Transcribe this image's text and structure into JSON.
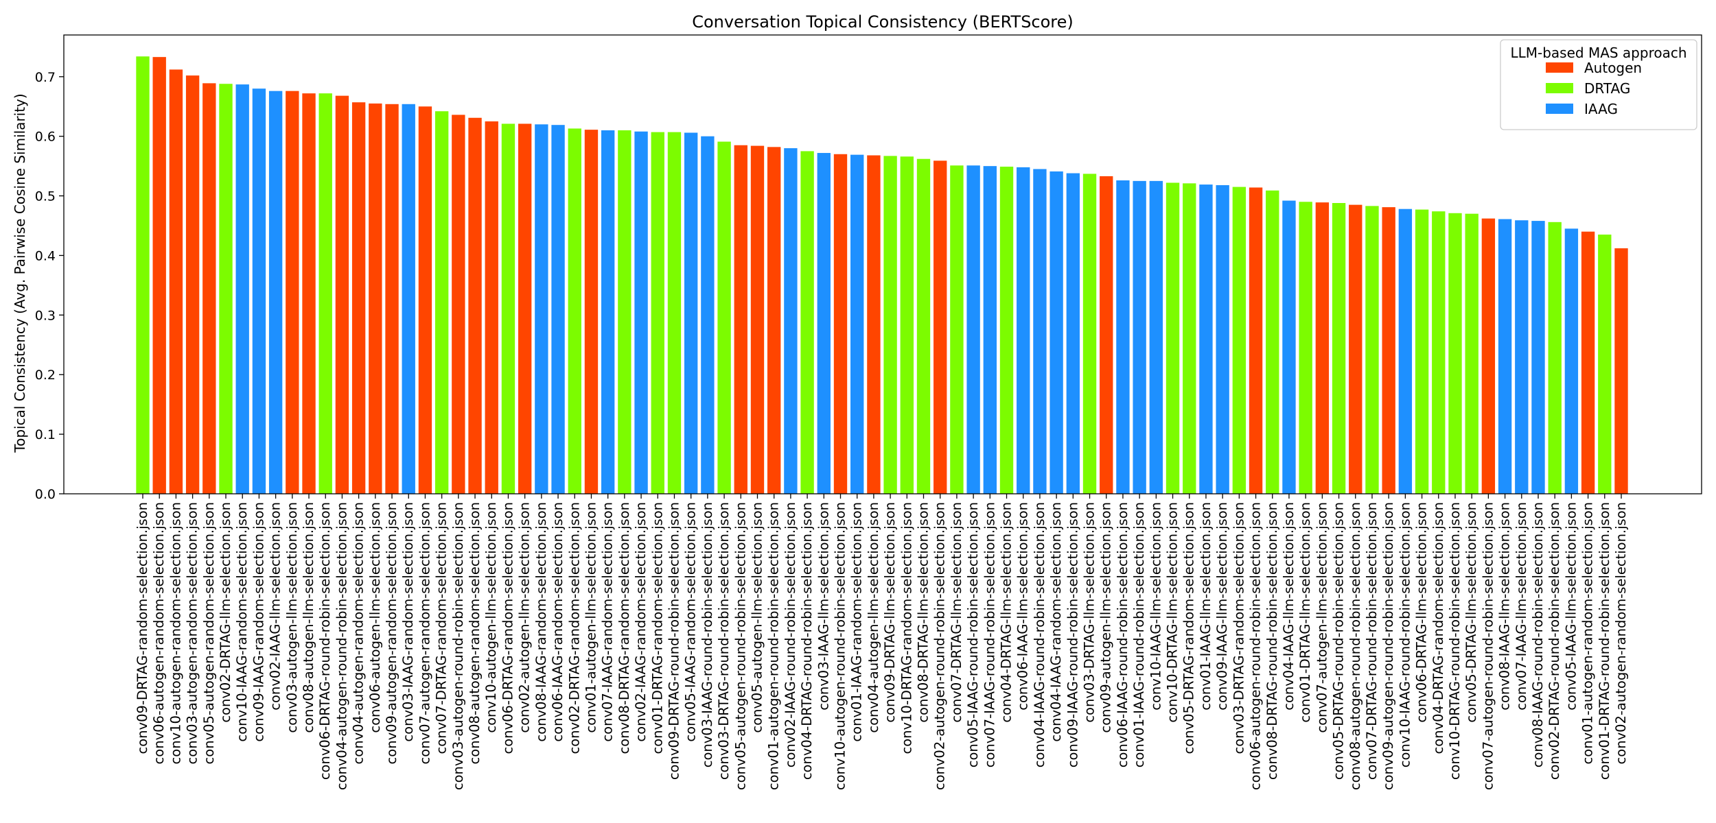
{
  "chart_data": {
    "type": "bar",
    "title": "Conversation Topical Consistency (BERTScore)",
    "xlabel": "",
    "ylabel": "Topical Consistency (Avg. Pairwise Cosine Similarity)",
    "ylim": [
      0,
      0.77
    ],
    "yticks": [
      0.0,
      0.1,
      0.2,
      0.3,
      0.4,
      0.5,
      0.6,
      0.7
    ],
    "ytick_labels": [
      "0.0",
      "0.1",
      "0.2",
      "0.3",
      "0.4",
      "0.5",
      "0.6",
      "0.7"
    ],
    "grid": false,
    "legend": {
      "title": "LLM-based MAS approach",
      "placement": "top-right",
      "entries": [
        {
          "name": "Autogen",
          "color": "#FF4500"
        },
        {
          "name": "DRTAG",
          "color": "#7CFC00"
        },
        {
          "name": "IAAG",
          "color": "#1E90FF"
        }
      ]
    },
    "categories": [
      "conv09-DRTAG-random-selection.json",
      "conv06-autogen-random-selection.json",
      "conv10-autogen-random-selection.json",
      "conv03-autogen-random-selection.json",
      "conv05-autogen-random-selection.json",
      "conv02-DRTAG-llm-selection.json",
      "conv10-IAAG-random-selection.json",
      "conv09-IAAG-random-selection.json",
      "conv02-IAAG-llm-selection.json",
      "conv03-autogen-llm-selection.json",
      "conv08-autogen-llm-selection.json",
      "conv06-DRTAG-round-robin-selection.json",
      "conv04-autogen-round-robin-selection.json",
      "conv04-autogen-random-selection.json",
      "conv06-autogen-llm-selection.json",
      "conv09-autogen-random-selection.json",
      "conv03-IAAG-random-selection.json",
      "conv07-autogen-random-selection.json",
      "conv07-DRTAG-random-selection.json",
      "conv03-autogen-round-robin-selection.json",
      "conv08-autogen-random-selection.json",
      "conv10-autogen-llm-selection.json",
      "conv06-DRTAG-random-selection.json",
      "conv02-autogen-llm-selection.json",
      "conv08-IAAG-random-selection.json",
      "conv06-IAAG-random-selection.json",
      "conv02-DRTAG-random-selection.json",
      "conv01-autogen-llm-selection.json",
      "conv07-IAAG-random-selection.json",
      "conv08-DRTAG-random-selection.json",
      "conv02-IAAG-random-selection.json",
      "conv01-DRTAG-random-selection.json",
      "conv09-DRTAG-round-robin-selection.json",
      "conv05-IAAG-random-selection.json",
      "conv03-IAAG-round-robin-selection.json",
      "conv03-DRTAG-round-robin-selection.json",
      "conv05-autogen-round-robin-selection.json",
      "conv05-autogen-llm-selection.json",
      "conv01-autogen-round-robin-selection.json",
      "conv02-IAAG-round-robin-selection.json",
      "conv04-DRTAG-round-robin-selection.json",
      "conv03-IAAG-llm-selection.json",
      "conv10-autogen-round-robin-selection.json",
      "conv01-IAAG-random-selection.json",
      "conv04-autogen-llm-selection.json",
      "conv09-DRTAG-llm-selection.json",
      "conv10-DRTAG-random-selection.json",
      "conv08-DRTAG-llm-selection.json",
      "conv02-autogen-round-robin-selection.json",
      "conv07-DRTAG-llm-selection.json",
      "conv05-IAAG-round-robin-selection.json",
      "conv07-IAAG-round-robin-selection.json",
      "conv04-DRTAG-llm-selection.json",
      "conv06-IAAG-llm-selection.json",
      "conv04-IAAG-round-robin-selection.json",
      "conv04-IAAG-random-selection.json",
      "conv09-IAAG-round-robin-selection.json",
      "conv03-DRTAG-llm-selection.json",
      "conv09-autogen-llm-selection.json",
      "conv06-IAAG-round-robin-selection.json",
      "conv01-IAAG-round-robin-selection.json",
      "conv10-IAAG-llm-selection.json",
      "conv10-DRTAG-llm-selection.json",
      "conv05-DRTAG-random-selection.json",
      "conv01-IAAG-llm-selection.json",
      "conv09-IAAG-llm-selection.json",
      "conv03-DRTAG-random-selection.json",
      "conv06-autogen-round-robin-selection.json",
      "conv08-DRTAG-round-robin-selection.json",
      "conv04-IAAG-llm-selection.json",
      "conv01-DRTAG-llm-selection.json",
      "conv07-autogen-llm-selection.json",
      "conv05-DRTAG-round-robin-selection.json",
      "conv08-autogen-round-robin-selection.json",
      "conv07-DRTAG-round-robin-selection.json",
      "conv09-autogen-round-robin-selection.json",
      "conv10-IAAG-round-robin-selection.json",
      "conv06-DRTAG-llm-selection.json",
      "conv04-DRTAG-random-selection.json",
      "conv10-DRTAG-round-robin-selection.json",
      "conv05-DRTAG-llm-selection.json",
      "conv07-autogen-round-robin-selection.json",
      "conv08-IAAG-llm-selection.json",
      "conv07-IAAG-llm-selection.json",
      "conv08-IAAG-round-robin-selection.json",
      "conv02-DRTAG-round-robin-selection.json",
      "conv05-IAAG-llm-selection.json",
      "conv01-autogen-random-selection.json",
      "conv01-DRTAG-round-robin-selection.json",
      "conv02-autogen-random-selection.json"
    ],
    "values": [
      0.734,
      0.733,
      0.712,
      0.702,
      0.689,
      0.688,
      0.687,
      0.68,
      0.676,
      0.676,
      0.672,
      0.672,
      0.668,
      0.657,
      0.655,
      0.654,
      0.654,
      0.65,
      0.642,
      0.636,
      0.631,
      0.625,
      0.621,
      0.621,
      0.62,
      0.619,
      0.613,
      0.611,
      0.61,
      0.61,
      0.608,
      0.607,
      0.607,
      0.606,
      0.6,
      0.591,
      0.585,
      0.584,
      0.582,
      0.58,
      0.575,
      0.572,
      0.57,
      0.569,
      0.568,
      0.567,
      0.566,
      0.562,
      0.559,
      0.551,
      0.551,
      0.55,
      0.549,
      0.548,
      0.545,
      0.541,
      0.538,
      0.537,
      0.533,
      0.526,
      0.525,
      0.525,
      0.522,
      0.521,
      0.519,
      0.518,
      0.515,
      0.514,
      0.509,
      0.492,
      0.49,
      0.489,
      0.488,
      0.485,
      0.483,
      0.481,
      0.478,
      0.477,
      0.474,
      0.471,
      0.47,
      0.462,
      0.461,
      0.459,
      0.458,
      0.456,
      0.445,
      0.44,
      0.435,
      0.412
    ],
    "bar_approach": [
      "DRTAG",
      "Autogen",
      "Autogen",
      "Autogen",
      "Autogen",
      "DRTAG",
      "IAAG",
      "IAAG",
      "IAAG",
      "Autogen",
      "Autogen",
      "DRTAG",
      "Autogen",
      "Autogen",
      "Autogen",
      "Autogen",
      "IAAG",
      "Autogen",
      "DRTAG",
      "Autogen",
      "Autogen",
      "Autogen",
      "DRTAG",
      "Autogen",
      "IAAG",
      "IAAG",
      "DRTAG",
      "Autogen",
      "IAAG",
      "DRTAG",
      "IAAG",
      "DRTAG",
      "DRTAG",
      "IAAG",
      "IAAG",
      "DRTAG",
      "Autogen",
      "Autogen",
      "Autogen",
      "IAAG",
      "DRTAG",
      "IAAG",
      "Autogen",
      "IAAG",
      "Autogen",
      "DRTAG",
      "DRTAG",
      "DRTAG",
      "Autogen",
      "DRTAG",
      "IAAG",
      "IAAG",
      "DRTAG",
      "IAAG",
      "IAAG",
      "IAAG",
      "IAAG",
      "DRTAG",
      "Autogen",
      "IAAG",
      "IAAG",
      "IAAG",
      "DRTAG",
      "DRTAG",
      "IAAG",
      "IAAG",
      "DRTAG",
      "Autogen",
      "DRTAG",
      "IAAG",
      "DRTAG",
      "Autogen",
      "DRTAG",
      "Autogen",
      "DRTAG",
      "Autogen",
      "IAAG",
      "DRTAG",
      "DRTAG",
      "DRTAG",
      "DRTAG",
      "Autogen",
      "IAAG",
      "IAAG",
      "IAAG",
      "DRTAG",
      "IAAG",
      "Autogen",
      "DRTAG",
      "Autogen"
    ]
  }
}
